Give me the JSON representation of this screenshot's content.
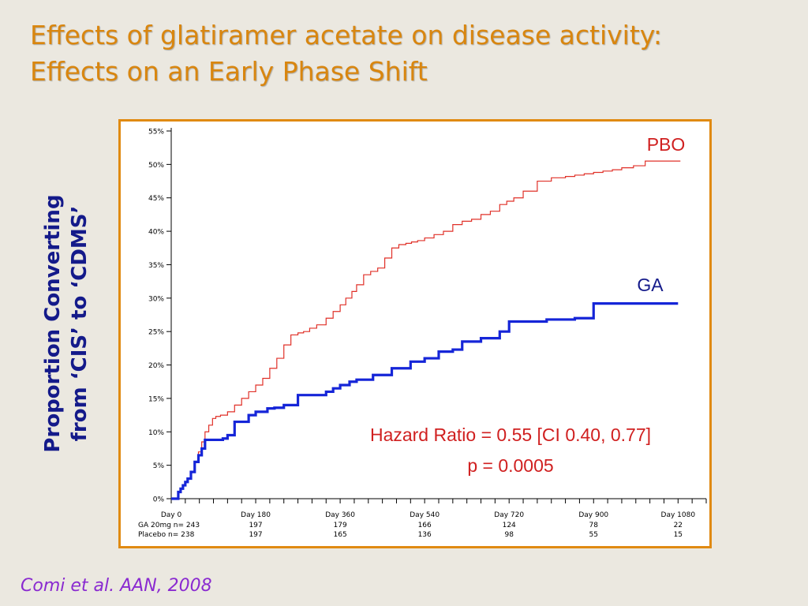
{
  "slide": {
    "title_line1": "Effects of glatiramer acetate on disease activity:",
    "title_line2": "Effects on an Early Phase Shift",
    "citation_author": "Comi",
    "citation_rest": " et al.  AAN, 2008",
    "colors": {
      "title": "#d9860f",
      "ylabel": "#141a8a",
      "frame": "#e08a12",
      "citation": "#8a2ad0"
    }
  },
  "chart_data": {
    "type": "line",
    "title": "",
    "xlabel": "",
    "ylabel_line1": "Proportion Converting",
    "ylabel_line2": "from ‘CIS’ to ‘CDMS’",
    "xlim": [
      0,
      1140
    ],
    "ylim": [
      0,
      55
    ],
    "yticks": [
      0,
      5,
      10,
      15,
      20,
      25,
      30,
      35,
      40,
      45,
      50,
      55
    ],
    "ytick_labels": [
      "0%",
      "5%",
      "10%",
      "15%",
      "20%",
      "25%",
      "30%",
      "35%",
      "40%",
      "45%",
      "50%",
      "55%"
    ],
    "xticks": [
      0,
      180,
      360,
      540,
      720,
      900,
      1080
    ],
    "xtick_labels": [
      "Day 0",
      "Day 180",
      "Day 360",
      "Day 540",
      "Day 720",
      "Day 900",
      "Day 1080"
    ],
    "risk_table": [
      {
        "label": "GA 20mg n= 243",
        "values": [
          "197",
          "179",
          "166",
          "124",
          "78",
          "22"
        ]
      },
      {
        "label": "Placebo n= 238",
        "values": [
          "197",
          "165",
          "136",
          "98",
          "55",
          "15"
        ]
      }
    ],
    "series": [
      {
        "name": "PBO",
        "color": "#e03028",
        "x": [
          0,
          15,
          20,
          25,
          30,
          35,
          42,
          50,
          58,
          65,
          72,
          80,
          88,
          95,
          105,
          120,
          135,
          150,
          165,
          180,
          195,
          210,
          225,
          240,
          255,
          270,
          282,
          295,
          310,
          330,
          345,
          360,
          372,
          385,
          395,
          410,
          425,
          440,
          455,
          470,
          485,
          500,
          512,
          525,
          540,
          560,
          580,
          600,
          620,
          640,
          660,
          680,
          700,
          715,
          730,
          750,
          780,
          810,
          840,
          860,
          880,
          900,
          920,
          940,
          960,
          985,
          1010,
          1060,
          1085
        ],
        "y": [
          0,
          1.0,
          1.5,
          2.0,
          2.5,
          3.0,
          4.0,
          5.5,
          7.0,
          8.5,
          10.0,
          11.0,
          12.0,
          12.3,
          12.5,
          13.0,
          14.0,
          15.0,
          16.0,
          17.0,
          18.0,
          19.5,
          21.0,
          23.0,
          24.5,
          24.8,
          25.0,
          25.5,
          26.0,
          27.0,
          28.0,
          29.0,
          30.0,
          31.0,
          32.0,
          33.5,
          34.0,
          34.5,
          36.0,
          37.5,
          38.0,
          38.2,
          38.4,
          38.6,
          39.0,
          39.5,
          40.0,
          41.0,
          41.5,
          41.8,
          42.5,
          43.0,
          44.0,
          44.5,
          45.0,
          46.0,
          47.5,
          48.0,
          48.2,
          48.4,
          48.6,
          48.8,
          49.0,
          49.2,
          49.5,
          49.8,
          50.5,
          50.5,
          50.5
        ]
      },
      {
        "name": "GA",
        "color": "#1525d8",
        "x": [
          0,
          15,
          20,
          25,
          30,
          35,
          42,
          50,
          58,
          65,
          72,
          80,
          88,
          110,
          120,
          135,
          150,
          165,
          180,
          205,
          220,
          240,
          270,
          330,
          345,
          360,
          380,
          395,
          430,
          470,
          510,
          540,
          570,
          600,
          620,
          660,
          700,
          720,
          740,
          800,
          860,
          900,
          960,
          1080
        ],
        "y": [
          0,
          1.0,
          1.5,
          2.0,
          2.5,
          3.0,
          4.0,
          5.5,
          6.5,
          7.5,
          8.8,
          8.8,
          8.8,
          9.0,
          9.5,
          11.5,
          11.5,
          12.5,
          13.0,
          13.5,
          13.6,
          14.0,
          15.5,
          16.0,
          16.5,
          17.0,
          17.5,
          17.8,
          18.5,
          19.5,
          20.5,
          21.0,
          22.0,
          22.3,
          23.5,
          24.0,
          25.0,
          26.5,
          26.5,
          26.8,
          27.0,
          29.2,
          29.2,
          29.2
        ]
      }
    ],
    "annotations": {
      "pbo_label": "PBO",
      "ga_label": "GA",
      "hazard_line1": "Hazard Ratio = 0.55 [CI 0.40, 0.77]",
      "hazard_line2": "p = 0.0005"
    }
  }
}
